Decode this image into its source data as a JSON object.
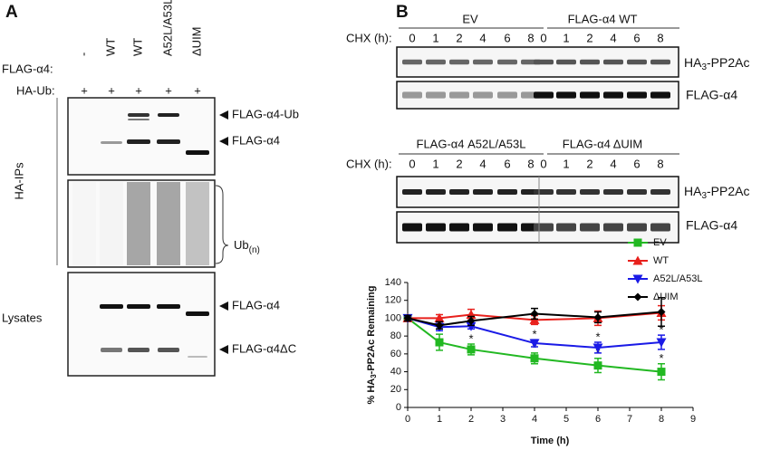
{
  "panel_a": {
    "label": "A",
    "row_labels": [
      "FLAG-α4:",
      "HA-Ub:"
    ],
    "lane_flag": [
      "-",
      "WT",
      "WT",
      "A52L/A53L",
      "ΔUIM"
    ],
    "lane_ha": [
      "+",
      "+",
      "+",
      "+",
      "+"
    ],
    "group_labels": [
      "HA-IPs",
      "Lysates"
    ],
    "band_labels": [
      "FLAG-α4-Ub",
      "FLAG-α4",
      "FLAG-α4",
      "FLAG-α4ΔC"
    ],
    "ub_label": {
      "text": "Ub",
      "sub": "(n)"
    }
  },
  "panel_b": {
    "label": "B",
    "groups_top": [
      "EV",
      "FLAG-α4 WT"
    ],
    "groups_bottom": [
      "FLAG-α4 A52L/A53L",
      "FLAG-α4 ΔUIM"
    ],
    "chx_label": "CHX (h):",
    "timepoints": [
      0,
      1,
      2,
      4,
      6,
      8
    ],
    "blot_labels": {
      "pp2a": {
        "pre": "HA",
        "sub": "3",
        "post": "-PP2Ac"
      },
      "flag": "FLAG-α4"
    }
  },
  "chart_data": {
    "type": "line",
    "ylabel": {
      "pre": "% HA",
      "sub": "3",
      "post": "-PP2Ac Remaining"
    },
    "xlabel": "Time (h)",
    "x": [
      0,
      1,
      2,
      4,
      6,
      8
    ],
    "xlim": [
      0,
      9
    ],
    "xticks": [
      0,
      1,
      2,
      3,
      4,
      5,
      6,
      7,
      8,
      9
    ],
    "ylim": [
      0,
      140
    ],
    "yticks": [
      0,
      20,
      40,
      60,
      80,
      100,
      120,
      140
    ],
    "series": [
      {
        "name": "EV",
        "color": "#22b822",
        "marker": "square",
        "values": [
          100,
          73,
          65,
          55,
          47,
          40
        ],
        "errors": [
          3,
          9,
          6,
          6,
          8,
          9
        ],
        "annotations": [
          null,
          null,
          "*",
          "*",
          "*",
          "*"
        ]
      },
      {
        "name": "WT",
        "color": "#e8201c",
        "marker": "triangle-up",
        "values": [
          100,
          100,
          104,
          98,
          100,
          106
        ],
        "errors": [
          3,
          4,
          6,
          5,
          8,
          8
        ],
        "annotations": [
          null,
          null,
          null,
          null,
          null,
          null
        ]
      },
      {
        "name": "A52L/A53L",
        "color": "#1a1ae6",
        "marker": "triangle-down",
        "values": [
          100,
          90,
          91,
          72,
          67,
          73
        ],
        "errors": [
          3,
          4,
          3,
          4,
          6,
          8
        ],
        "annotations": [
          null,
          null,
          null,
          "*",
          "*",
          "*"
        ]
      },
      {
        "name": "ΔUIM",
        "color": "#000000",
        "marker": "diamond",
        "values": [
          100,
          92,
          97,
          105,
          101,
          107
        ],
        "errors": [
          3,
          4,
          5,
          6,
          6,
          16
        ],
        "annotations": [
          null,
          null,
          null,
          null,
          null,
          null
        ]
      }
    ]
  }
}
